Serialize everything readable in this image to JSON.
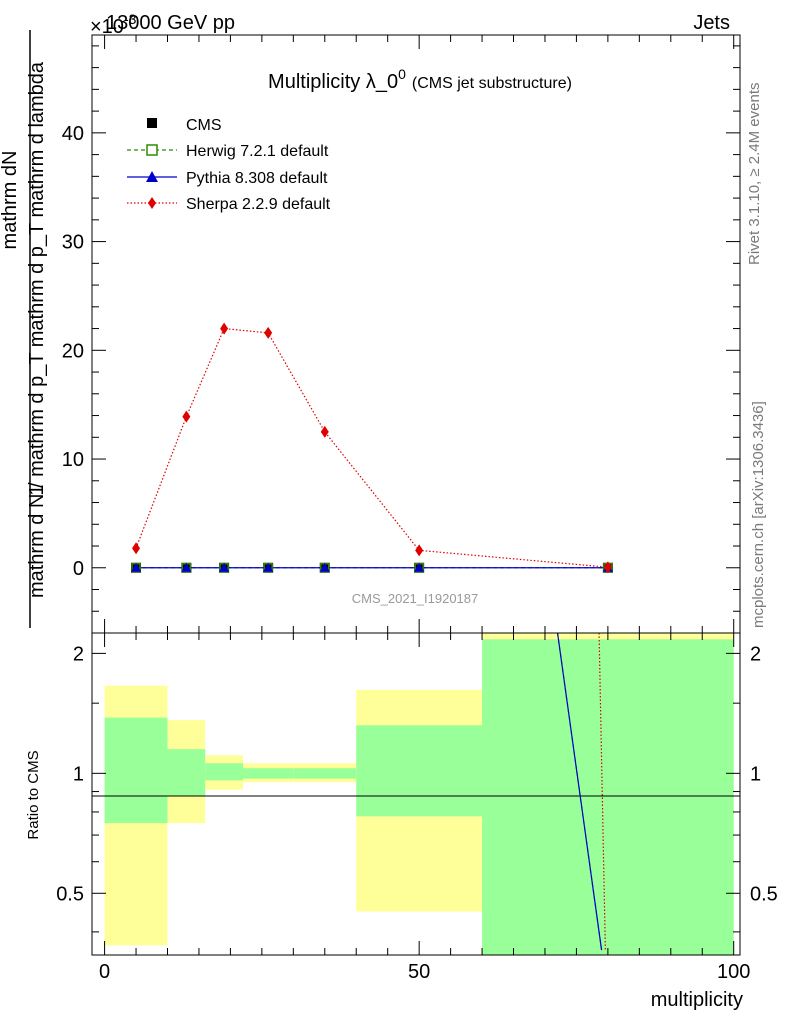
{
  "header": {
    "left": "13000 GeV pp",
    "right": "Jets",
    "exponent_prefix": "×10",
    "exponent_value": "-3"
  },
  "side_labels": {
    "rivet": "Rivet 3.1.10, ≥ 2.4M events",
    "mcplots": "mcplots.cern.ch [arXiv:1306.3436]"
  },
  "colors": {
    "cms": "#000000",
    "herwig": "#2e8b00",
    "pythia": "#0000cc",
    "sherpa": "#e00000",
    "band_inner": "#99ff99",
    "band_outer": "#ffff99"
  },
  "chart_data": [
    {
      "type": "line",
      "title": "Multiplicity λ_0",
      "title_sup": "0",
      "title_suffix": "(CMS jet substructure)",
      "ylabel_top": "1",
      "ylabel_top2": "mathrm dN",
      "ylabel_main": "mathrm d N / mathrm d p_T mathrm d p_T mathrm d lambda",
      "watermark": "CMS_2021_I1920187",
      "xlim": [
        -2,
        101
      ],
      "ylim": [
        -6,
        49
      ],
      "yscale_note": "values in units of 10^-3",
      "ytick_labels": [
        "0",
        "10",
        "20",
        "30",
        "40"
      ],
      "ytick_values": [
        0,
        10,
        20,
        30,
        40
      ],
      "legend_position": "top-left",
      "x": [
        5,
        13,
        19,
        26,
        35,
        50,
        80
      ],
      "series": [
        {
          "name": "CMS",
          "marker": "square",
          "values": [
            0,
            0,
            0,
            0,
            0,
            0,
            0
          ]
        },
        {
          "name": "Herwig 7.2.1 default",
          "marker": "open-square",
          "values": [
            0,
            0,
            0,
            0,
            0,
            0,
            0
          ]
        },
        {
          "name": "Pythia 8.308 default",
          "marker": "triangle",
          "values": [
            0,
            0,
            0,
            0,
            0,
            0,
            0
          ]
        },
        {
          "name": "Sherpa 2.2.9 default",
          "marker": "diamond",
          "values": [
            1.8,
            13.9,
            22.0,
            21.6,
            12.5,
            1.6,
            0.05
          ]
        }
      ]
    },
    {
      "type": "area",
      "ylabel": "Ratio to CMS",
      "xlabel": "multiplicity",
      "xlim": [
        -2,
        101
      ],
      "ylim": [
        0.35,
        2.25
      ],
      "xtick_labels": [
        "0",
        "50",
        "100"
      ],
      "xtick_values": [
        0,
        50,
        100
      ],
      "ytick_labels": [
        "0.5",
        "1",
        "2"
      ],
      "ytick_values": [
        0.5,
        1,
        2
      ],
      "bins": [
        {
          "lo": 0,
          "hi": 10,
          "inner": [
            0.75,
            1.38
          ],
          "outer": [
            0.37,
            1.66
          ]
        },
        {
          "lo": 10,
          "hi": 16,
          "inner": [
            0.88,
            1.15
          ],
          "outer": [
            0.75,
            1.36
          ]
        },
        {
          "lo": 16,
          "hi": 22,
          "inner": [
            0.96,
            1.06
          ],
          "outer": [
            0.91,
            1.11
          ]
        },
        {
          "lo": 22,
          "hi": 30,
          "inner": [
            0.97,
            1.03
          ],
          "outer": [
            0.95,
            1.06
          ]
        },
        {
          "lo": 30,
          "hi": 40,
          "inner": [
            0.97,
            1.03
          ],
          "outer": [
            0.95,
            1.06
          ]
        },
        {
          "lo": 40,
          "hi": 60,
          "inner": [
            0.78,
            1.32
          ],
          "outer": [
            0.45,
            1.62
          ]
        },
        {
          "lo": 60,
          "hi": 100,
          "inner": [
            0.35,
            2.17
          ],
          "outer": [
            0.35,
            2.3
          ]
        }
      ],
      "series": [
        {
          "name": "Herwig 7.2.1 default",
          "x": [
            72,
            79
          ],
          "values": [
            2.3,
            0.36
          ]
        },
        {
          "name": "Pythia 8.308 default",
          "x": [
            72,
            79
          ],
          "values": [
            2.3,
            0.36
          ]
        },
        {
          "name": "Sherpa 2.2.9 default",
          "x": [
            78.6,
            79.6
          ],
          "values": [
            2.3,
            0.36
          ]
        }
      ]
    }
  ]
}
